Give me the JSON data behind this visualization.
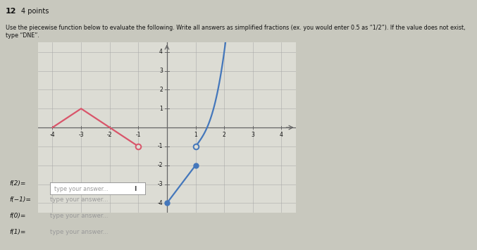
{
  "title_num": "12",
  "title_pts": "4 points",
  "instruction": "Use the piecewise function below to evaluate the following. Write all answers as simplified fractions (ex. you would enter 0.5 as “1/2”). If the value does not exist, type “DNE”.",
  "questions": [
    "f(2)=",
    "f(−1)=",
    "f(0)=",
    "f(1)="
  ],
  "placeholders": [
    "type your answer...",
    "type your answer...",
    "type your answer...",
    "type your answer..."
  ],
  "xlim": [
    -4.5,
    4.5
  ],
  "ylim": [
    -4.5,
    4.5
  ],
  "xticks": [
    -4,
    -3,
    -2,
    -1,
    1,
    2,
    3,
    4
  ],
  "yticks": [
    -4,
    -3,
    -2,
    -1,
    1,
    2,
    3,
    4
  ],
  "pink_color": "#d9556a",
  "blue_color": "#4477bb",
  "bg_color": "#c8c8be",
  "graph_bg": "#dcdcd4",
  "grid_color": "#aaaaaa",
  "axis_color": "#666666",
  "text_color": "#111111",
  "placeholder_color": "#999999",
  "pink_x": [
    -4,
    -3,
    -2,
    -1
  ],
  "pink_y": [
    0,
    1,
    0,
    -1
  ],
  "pink_open_circle": [
    -1,
    -1
  ],
  "blue_line_x": [
    0,
    1
  ],
  "blue_line_y": [
    -4,
    -2
  ],
  "blue_line_dots": [
    [
      0,
      -4
    ],
    [
      1,
      -2
    ]
  ],
  "blue_curve_open": [
    1,
    -1
  ],
  "blue_curve_a": 3.0,
  "blue_curve_b": 2.0,
  "blue_curve_c": -1.0,
  "blue_curve_xend": 2.35
}
